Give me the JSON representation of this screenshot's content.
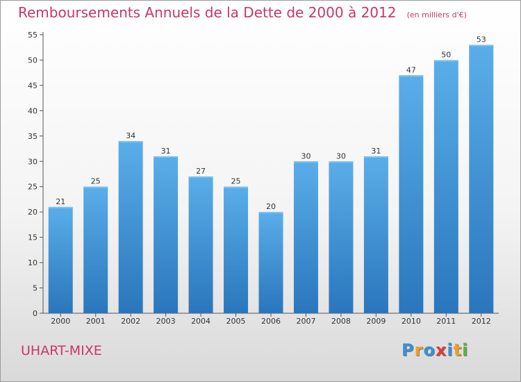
{
  "chart_data": {
    "type": "bar",
    "title": "Remboursements Annuels de la Dette de 2000 à 2012",
    "subtitle": "(en milliers d'€)",
    "categories": [
      "2000",
      "2001",
      "2002",
      "2003",
      "2004",
      "2005",
      "2006",
      "2007",
      "2008",
      "2009",
      "2010",
      "2011",
      "2012"
    ],
    "values": [
      21,
      25,
      34,
      31,
      27,
      25,
      20,
      30,
      30,
      31,
      47,
      50,
      53
    ],
    "ylim": [
      0,
      55
    ],
    "yticks": [
      0,
      5,
      10,
      15,
      20,
      25,
      30,
      35,
      40,
      45,
      50,
      55
    ],
    "xlabel": "",
    "ylabel": "",
    "grid": false,
    "bar_color": "#3d8fd6"
  },
  "location": "UHART-MIXE",
  "logo": {
    "letters": [
      "P",
      "r",
      "o",
      "x",
      "i",
      "t",
      "i"
    ],
    "colors": [
      "#3a8fd8",
      "#f0a020",
      "#3a8fd8",
      "#e23a3a",
      "#3a8fd8",
      "#f0a020",
      "#5ab43a"
    ]
  }
}
